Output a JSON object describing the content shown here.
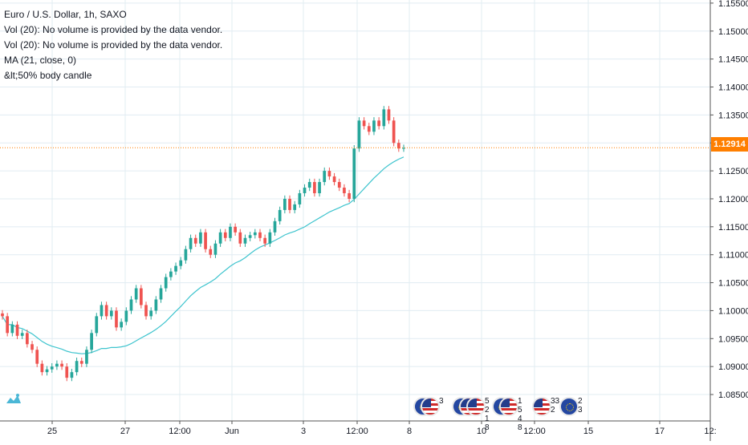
{
  "legend": {
    "title": "Euro / U.S. Dollar, 1h, SAXO",
    "vol1": "Vol (20): No volume is provided by the data vendor.",
    "vol2": "Vol (20): No volume is provided by the data vendor.",
    "ma": "MA (21, close, 0)",
    "body": "&lt;50% body candle"
  },
  "last_price": "1.12914",
  "colors": {
    "up": "#26a69a",
    "down": "#ef5350",
    "ma": "#3ec4ce",
    "price_line": "#ff7f00",
    "grid": "#e1ecf2",
    "text": "#131722"
  },
  "icons": {
    "logo": "tradingview-logo-icon",
    "events": [
      "eu-flag-icon",
      "us-flag-icon"
    ]
  },
  "events": [
    {
      "count": "3",
      "flags": [
        "eu",
        "us"
      ]
    },
    {
      "count": "5 2 1 8",
      "flags": [
        "eu",
        "us",
        "us"
      ]
    },
    {
      "count": "1 5 4 8",
      "flags": [
        "eu",
        "us"
      ]
    },
    {
      "count": "33 2",
      "flags": [
        "us"
      ]
    },
    {
      "count": "2 3",
      "flags": [
        "eu"
      ]
    }
  ],
  "chart_data": {
    "type": "candlestick",
    "title": "Euro / U.S. Dollar, 1h, SAXO",
    "xlabel": "",
    "ylabel": "",
    "x_ticks": [
      "25",
      "27",
      "12:00",
      "Jun",
      "3",
      "12:00",
      "8",
      "10",
      "12:00",
      "15",
      "17",
      "12:"
    ],
    "y_ticks": [
      "1.08500",
      "1.09000",
      "1.09500",
      "1.10000",
      "1.10500",
      "1.11000",
      "1.11500",
      "1.12000",
      "1.12500",
      "1.13000",
      "1.13500",
      "1.14000",
      "1.14500",
      "1.15000",
      "1.15500"
    ],
    "ylim": [
      1.0797,
      1.1557
    ],
    "grid": true,
    "last_price": 1.12914,
    "ma_period": 21,
    "closes": [
      1.099,
      1.096,
      1.0975,
      1.0955,
      1.096,
      1.094,
      1.093,
      1.0905,
      1.089,
      1.0895,
      1.09,
      1.0905,
      1.09,
      1.088,
      1.089,
      1.091,
      1.0905,
      1.093,
      1.096,
      1.099,
      1.101,
      1.099,
      1.1,
      1.097,
      1.098,
      1.1,
      1.102,
      1.104,
      1.101,
      1.099,
      1.1,
      1.102,
      1.104,
      1.106,
      1.107,
      1.108,
      1.109,
      1.111,
      1.113,
      1.112,
      1.114,
      1.111,
      1.11,
      1.112,
      1.114,
      1.113,
      1.115,
      1.114,
      1.112,
      1.113,
      1.1135,
      1.114,
      1.113,
      1.112,
      1.114,
      1.116,
      1.118,
      1.12,
      1.118,
      1.119,
      1.121,
      1.122,
      1.123,
      1.121,
      1.123,
      1.125,
      1.124,
      1.123,
      1.122,
      1.121,
      1.12,
      1.129,
      1.134,
      1.133,
      1.132,
      1.134,
      1.133,
      1.136,
      1.134,
      1.13,
      1.129,
      1.1291
    ]
  }
}
